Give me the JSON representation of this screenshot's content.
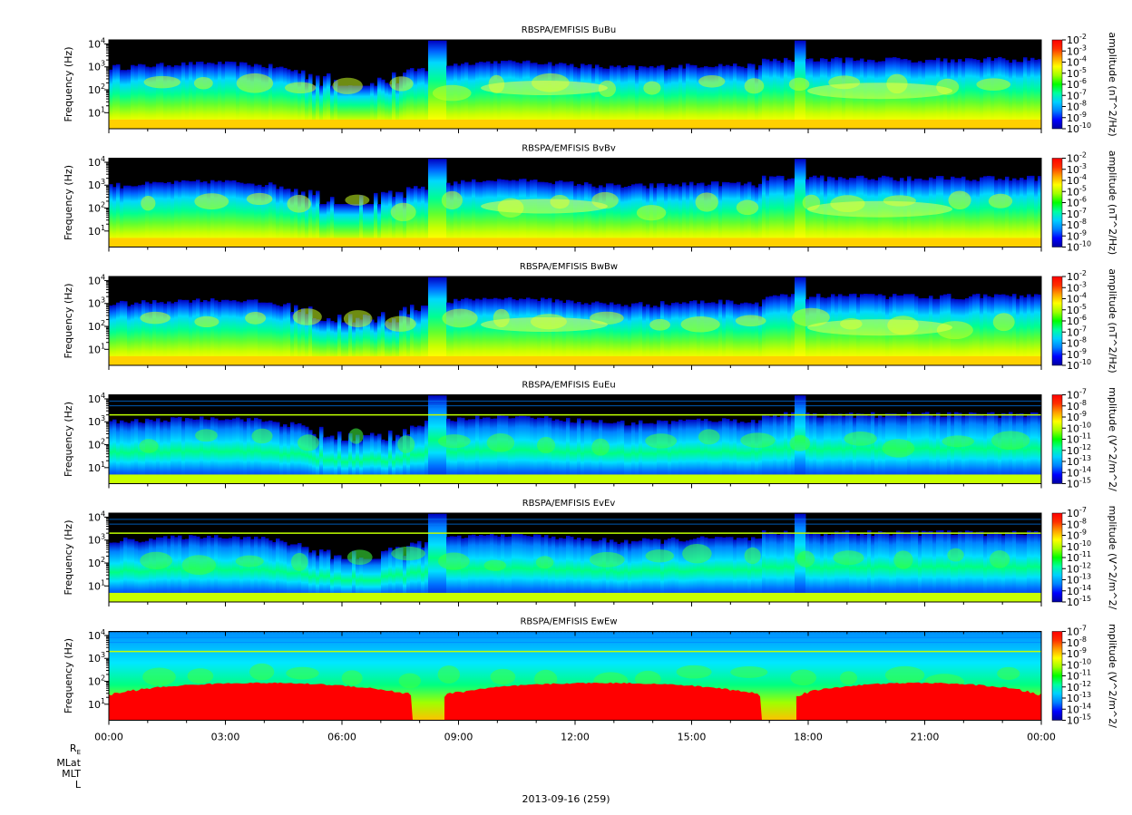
{
  "chart_data": [
    {
      "type": "heatmap",
      "title": "RBSPA/EMFISIS  BuBu",
      "ylabel": "Frequency (Hz)",
      "ylim": [
        2,
        15000
      ],
      "yscale": "log",
      "yticks": [
        "10",
        "10",
        "10",
        "10"
      ],
      "ytick_exponents": [
        "1",
        "2",
        "3",
        "4"
      ],
      "x_tick_labels": [
        "00:00",
        "03:00",
        "06:00",
        "09:00",
        "12:00",
        "15:00",
        "18:00",
        "21:00",
        "00:00"
      ],
      "colorbar_label": "amplitude (nT^2/Hz)",
      "colorbar_ticks": [
        "10",
        "10",
        "10",
        "10",
        "10",
        "10",
        "10",
        "10",
        "10"
      ],
      "colorbar_exponents": [
        "-2",
        "-3",
        "-4",
        "-5",
        "-6",
        "-7",
        "-8",
        "-9",
        "-10"
      ],
      "colorbar_range": [
        1e-10,
        0.01
      ],
      "grid": false
    },
    {
      "type": "heatmap",
      "title": "RBSPA/EMFISIS  BvBv",
      "ylabel": "Frequency (Hz)",
      "ylim": [
        2,
        15000
      ],
      "yscale": "log",
      "yticks": [
        "10",
        "10",
        "10",
        "10"
      ],
      "ytick_exponents": [
        "1",
        "2",
        "3",
        "4"
      ],
      "colorbar_label": "amplitude (nT^2/Hz)",
      "colorbar_ticks": [
        "10",
        "10",
        "10",
        "10",
        "10",
        "10",
        "10",
        "10",
        "10"
      ],
      "colorbar_exponents": [
        "-2",
        "-3",
        "-4",
        "-5",
        "-6",
        "-7",
        "-8",
        "-9",
        "-10"
      ],
      "colorbar_range": [
        1e-10,
        0.01
      ],
      "grid": false
    },
    {
      "type": "heatmap",
      "title": "RBSPA/EMFISIS  BwBw",
      "ylabel": "Frequency (Hz)",
      "ylim": [
        2,
        15000
      ],
      "yscale": "log",
      "yticks": [
        "10",
        "10",
        "10",
        "10"
      ],
      "ytick_exponents": [
        "1",
        "2",
        "3",
        "4"
      ],
      "colorbar_label": "amplitude (nT^2/Hz)",
      "colorbar_ticks": [
        "10",
        "10",
        "10",
        "10",
        "10",
        "10",
        "10",
        "10",
        "10"
      ],
      "colorbar_exponents": [
        "-2",
        "-3",
        "-4",
        "-5",
        "-6",
        "-7",
        "-8",
        "-9",
        "-10"
      ],
      "colorbar_range": [
        1e-10,
        0.01
      ],
      "grid": false
    },
    {
      "type": "heatmap",
      "title": "RBSPA/EMFISIS  EuEu",
      "ylabel": "Frequency (Hz)",
      "ylim": [
        2,
        15000
      ],
      "yscale": "log",
      "yticks": [
        "10",
        "10",
        "10",
        "10"
      ],
      "ytick_exponents": [
        "1",
        "2",
        "3",
        "4"
      ],
      "colorbar_label": "mplitude (V^2/m^2/",
      "colorbar_ticks": [
        "10",
        "10",
        "10",
        "10",
        "10",
        "10",
        "10",
        "10",
        "10"
      ],
      "colorbar_exponents": [
        "-7",
        "-8",
        "-9",
        "-10",
        "-11",
        "-12",
        "-13",
        "-14",
        "-15"
      ],
      "colorbar_range": [
        1e-15,
        1e-07
      ],
      "grid": false
    },
    {
      "type": "heatmap",
      "title": "RBSPA/EMFISIS  EvEv",
      "ylabel": "Frequency (Hz)",
      "ylim": [
        2,
        15000
      ],
      "yscale": "log",
      "yticks": [
        "10",
        "10",
        "10",
        "10"
      ],
      "ytick_exponents": [
        "1",
        "2",
        "3",
        "4"
      ],
      "colorbar_label": "mplitude (V^2/m^2/",
      "colorbar_ticks": [
        "10",
        "10",
        "10",
        "10",
        "10",
        "10",
        "10",
        "10",
        "10"
      ],
      "colorbar_exponents": [
        "-7",
        "-8",
        "-9",
        "-10",
        "-11",
        "-12",
        "-13",
        "-14",
        "-15"
      ],
      "colorbar_range": [
        1e-15,
        1e-07
      ],
      "grid": false
    },
    {
      "type": "heatmap",
      "title": "RBSPA/EMFISIS  EwEw",
      "ylabel": "Frequency (Hz)",
      "ylim": [
        2,
        15000
      ],
      "yscale": "log",
      "yticks": [
        "10",
        "10",
        "10",
        "10"
      ],
      "ytick_exponents": [
        "1",
        "2",
        "3",
        "4"
      ],
      "colorbar_label": "mplitude (V^2/m^2/",
      "colorbar_ticks": [
        "10",
        "10",
        "10",
        "10",
        "10",
        "10",
        "10",
        "10",
        "10"
      ],
      "colorbar_exponents": [
        "-7",
        "-8",
        "-9",
        "-10",
        "-11",
        "-12",
        "-13",
        "-14",
        "-15"
      ],
      "colorbar_range": [
        1e-15,
        1e-07
      ],
      "grid": false
    }
  ],
  "x_axis": {
    "tick_labels": [
      "00:00",
      "03:00",
      "06:00",
      "09:00",
      "12:00",
      "15:00",
      "18:00",
      "21:00",
      "00:00"
    ],
    "footer_labels": [
      "R",
      "MLat",
      "MLT",
      "L"
    ],
    "footer_R_subscript": "E",
    "date_label": "2013-09-16 (259)"
  },
  "colors": {
    "background": "#ffffff",
    "spectrogram_sky": "#000000",
    "colormap": [
      "#0000a0",
      "#0000ff",
      "#0080ff",
      "#00d0ff",
      "#00ffa0",
      "#00ff00",
      "#a0ff00",
      "#ffff00",
      "#ffa000",
      "#ff3000",
      "#ff0000"
    ]
  }
}
